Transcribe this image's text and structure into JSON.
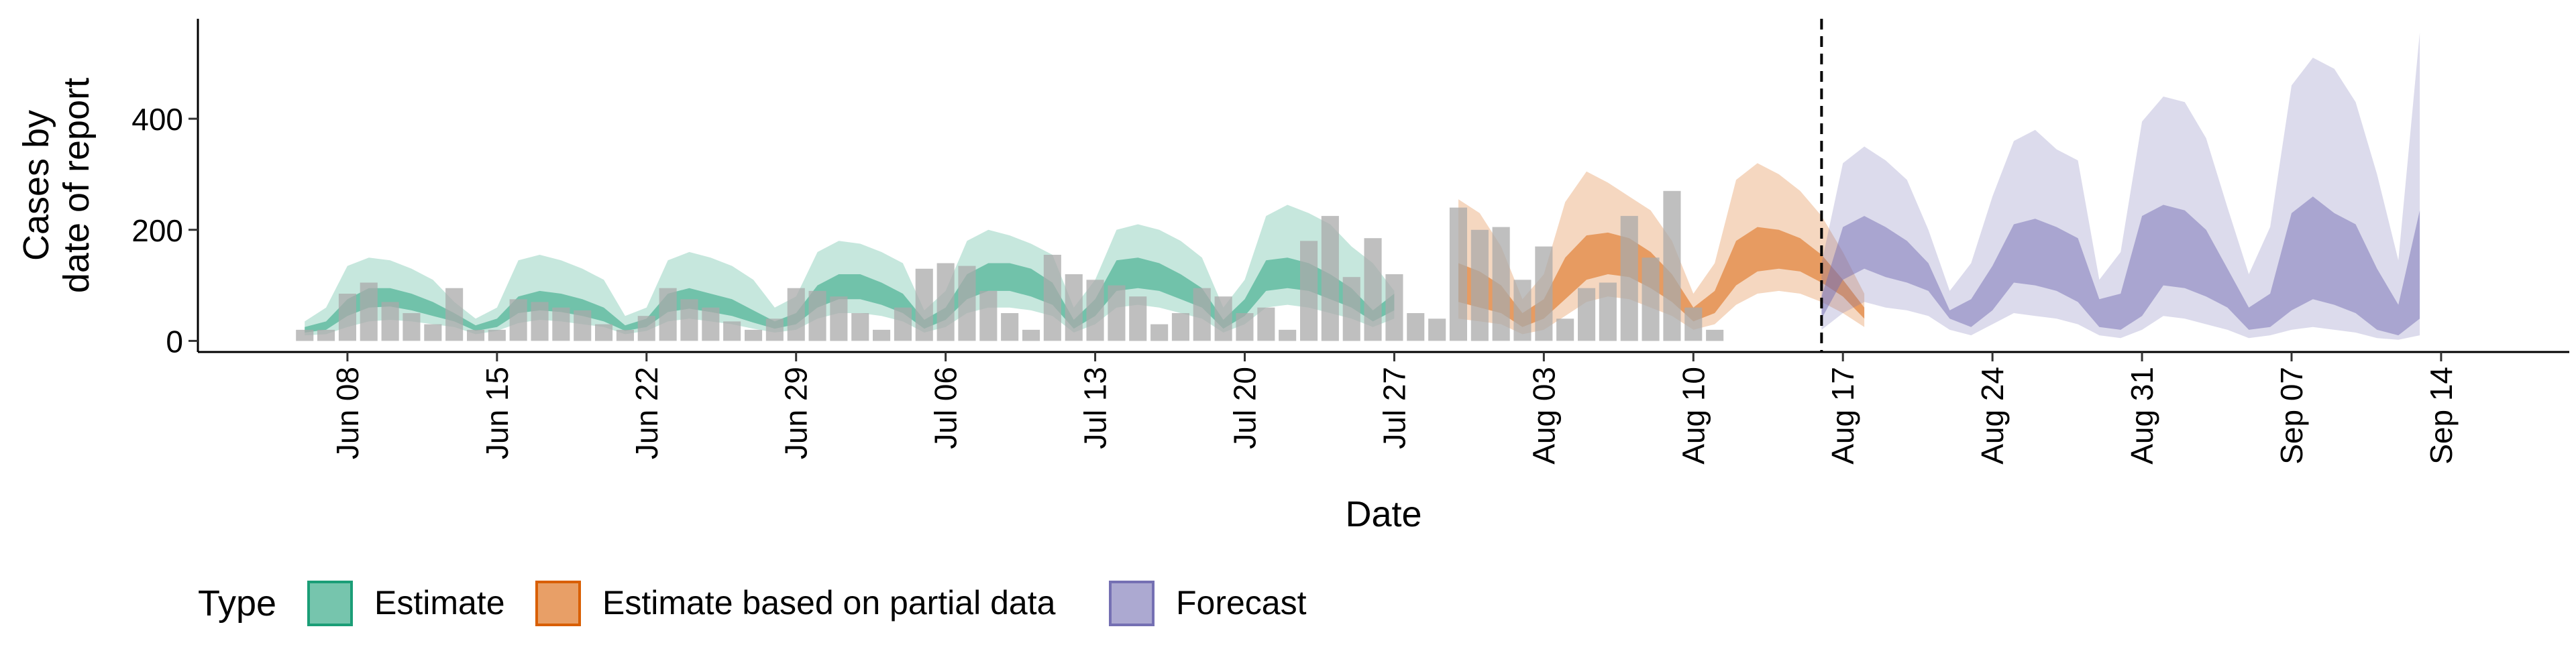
{
  "chart_data": {
    "type": "area",
    "title": "",
    "xlabel": "Date",
    "ylabel_lines": [
      "Cases by",
      "date of report"
    ],
    "ylim": [
      -20,
      580
    ],
    "yticks": [
      0,
      200,
      400
    ],
    "xlim": [
      "2020-06-01",
      "2020-09-20"
    ],
    "xticks": [
      {
        "date": "2020-06-08",
        "label": "Jun 08"
      },
      {
        "date": "2020-06-15",
        "label": "Jun 15"
      },
      {
        "date": "2020-06-22",
        "label": "Jun 22"
      },
      {
        "date": "2020-06-29",
        "label": "Jun 29"
      },
      {
        "date": "2020-07-06",
        "label": "Jul 06"
      },
      {
        "date": "2020-07-13",
        "label": "Jul 13"
      },
      {
        "date": "2020-07-20",
        "label": "Jul 20"
      },
      {
        "date": "2020-07-27",
        "label": "Jul 27"
      },
      {
        "date": "2020-08-03",
        "label": "Aug 03"
      },
      {
        "date": "2020-08-10",
        "label": "Aug 10"
      },
      {
        "date": "2020-08-17",
        "label": "Aug 17"
      },
      {
        "date": "2020-08-24",
        "label": "Aug 24"
      },
      {
        "date": "2020-08-31",
        "label": "Aug 31"
      },
      {
        "date": "2020-09-07",
        "label": "Sep 07"
      },
      {
        "date": "2020-09-14",
        "label": "Sep 14"
      }
    ],
    "forecast_start_line": "2020-08-16",
    "legend": {
      "title": "Type",
      "placement": "bottom",
      "entries": [
        {
          "label": "Estimate",
          "fill": "#1b9e77",
          "stroke": "#1b9e77"
        },
        {
          "label": "Estimate based on partial data",
          "fill": "#d95f02",
          "stroke": "#d95f02"
        },
        {
          "label": "Forecast",
          "fill": "#7570b3",
          "stroke": "#7570b3"
        }
      ]
    },
    "colors": {
      "Estimate": "#1b9e77",
      "Estimate based on partial data": "#d95f02",
      "Forecast": "#7570b3",
      "observed_bars": "#a9a9a9"
    },
    "observed_cases": {
      "start_date": "2020-06-06",
      "values": [
        20,
        20,
        85,
        105,
        70,
        50,
        30,
        95,
        20,
        20,
        75,
        70,
        60,
        55,
        30,
        20,
        45,
        95,
        75,
        60,
        35,
        20,
        40,
        95,
        90,
        80,
        50,
        20,
        60,
        130,
        140,
        135,
        90,
        50,
        20,
        155,
        120,
        110,
        100,
        80,
        30,
        50,
        95,
        80,
        50,
        60,
        20,
        180,
        225,
        115,
        185,
        120,
        50,
        40,
        240,
        200,
        205,
        110,
        170,
        40,
        95,
        105,
        225,
        150,
        270,
        60,
        20
      ]
    },
    "series": [
      {
        "name": "Estimate",
        "start_date": "2020-06-06",
        "outer_lower": [
          10,
          12,
          25,
          35,
          38,
          35,
          30,
          25,
          12,
          18,
          32,
          38,
          35,
          30,
          25,
          12,
          18,
          35,
          40,
          35,
          30,
          22,
          15,
          20,
          40,
          50,
          50,
          45,
          35,
          15,
          25,
          50,
          60,
          60,
          55,
          45,
          15,
          30,
          60,
          65,
          60,
          50,
          40,
          15,
          30,
          60,
          65,
          60,
          50,
          40,
          25,
          40
        ],
        "inner_lower": [
          15,
          20,
          45,
          60,
          62,
          55,
          45,
          35,
          18,
          25,
          50,
          55,
          52,
          45,
          35,
          18,
          25,
          52,
          58,
          52,
          45,
          33,
          22,
          30,
          60,
          75,
          75,
          65,
          50,
          22,
          38,
          75,
          90,
          90,
          80,
          65,
          22,
          45,
          90,
          95,
          90,
          75,
          60,
          22,
          45,
          90,
          95,
          90,
          75,
          60,
          35,
          55
        ],
        "inner_upper": [
          25,
          35,
          75,
          95,
          95,
          85,
          70,
          50,
          28,
          40,
          80,
          90,
          85,
          75,
          60,
          28,
          40,
          85,
          95,
          85,
          75,
          55,
          35,
          50,
          100,
          120,
          120,
          105,
          85,
          38,
          60,
          120,
          140,
          140,
          130,
          105,
          38,
          75,
          145,
          150,
          140,
          120,
          95,
          38,
          75,
          145,
          150,
          140,
          120,
          95,
          55,
          85
        ],
        "outer_upper": [
          35,
          60,
          135,
          150,
          145,
          130,
          110,
          70,
          40,
          60,
          145,
          155,
          145,
          130,
          110,
          45,
          60,
          145,
          160,
          150,
          135,
          110,
          60,
          80,
          160,
          180,
          175,
          160,
          140,
          55,
          90,
          180,
          200,
          190,
          175,
          155,
          60,
          110,
          200,
          210,
          200,
          180,
          150,
          60,
          110,
          225,
          245,
          230,
          210,
          170,
          140,
          90
        ]
      },
      {
        "name": "Estimate based on partial data",
        "start_date": "2020-07-30",
        "outer_lower": [
          40,
          35,
          30,
          12,
          20,
          45,
          70,
          80,
          75,
          60,
          45,
          20,
          30,
          65,
          85,
          90,
          85,
          70,
          50,
          25
        ],
        "inner_lower": [
          70,
          60,
          50,
          25,
          40,
          75,
          110,
          120,
          115,
          95,
          70,
          35,
          50,
          100,
          125,
          130,
          125,
          105,
          80,
          40
        ],
        "inner_upper": [
          140,
          125,
          100,
          50,
          75,
          150,
          190,
          195,
          185,
          160,
          120,
          60,
          90,
          180,
          205,
          200,
          185,
          155,
          110,
          60
        ],
        "outer_upper": [
          255,
          230,
          170,
          75,
          120,
          250,
          305,
          285,
          260,
          235,
          180,
          85,
          140,
          290,
          320,
          300,
          270,
          225,
          160,
          85
        ]
      },
      {
        "name": "Forecast",
        "start_date": "2020-08-16",
        "outer_lower": [
          20,
          50,
          70,
          60,
          55,
          45,
          20,
          10,
          30,
          50,
          45,
          40,
          30,
          10,
          5,
          20,
          45,
          40,
          30,
          20,
          5,
          10,
          20,
          25,
          20,
          15,
          5,
          2,
          10
        ],
        "inner_lower": [
          40,
          110,
          130,
          115,
          105,
          90,
          40,
          25,
          55,
          105,
          100,
          90,
          70,
          25,
          20,
          45,
          100,
          95,
          80,
          60,
          20,
          25,
          55,
          75,
          65,
          50,
          20,
          10,
          40
        ],
        "inner_upper": [
          80,
          205,
          225,
          205,
          180,
          140,
          55,
          75,
          135,
          210,
          220,
          205,
          185,
          75,
          85,
          225,
          245,
          235,
          200,
          130,
          60,
          85,
          230,
          260,
          230,
          210,
          130,
          65,
          235
        ],
        "outer_upper": [
          140,
          320,
          350,
          325,
          290,
          200,
          90,
          140,
          260,
          360,
          380,
          345,
          325,
          110,
          160,
          395,
          440,
          430,
          365,
          240,
          120,
          205,
          460,
          510,
          490,
          430,
          300,
          145,
          555
        ]
      }
    ]
  }
}
